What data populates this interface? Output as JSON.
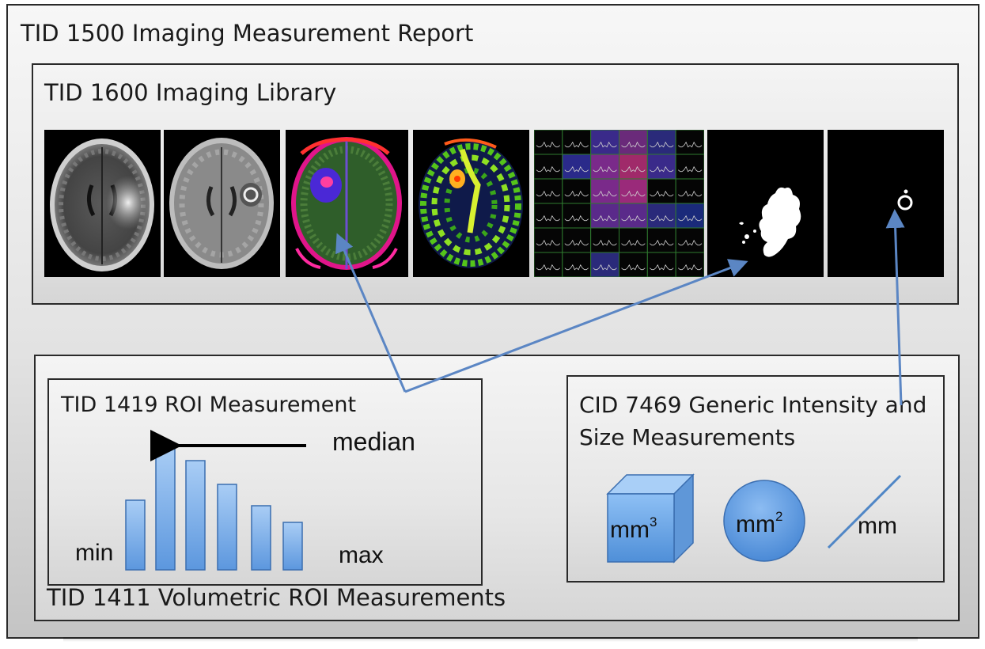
{
  "report": {
    "title": "TID 1500 Imaging Measurement Report"
  },
  "library": {
    "title": "TID 1600 Imaging Library",
    "images": [
      {
        "name": "flair-axial-brain-image"
      },
      {
        "name": "t1-contrast-axial-brain-image"
      },
      {
        "name": "perfusion-color-map-image"
      },
      {
        "name": "diffusion-color-map-image"
      },
      {
        "name": "spectroscopy-grid-image"
      },
      {
        "name": "tumor-segmentation-mask-image"
      },
      {
        "name": "enhancing-lesion-mask-image"
      }
    ]
  },
  "volumetric": {
    "title": "TID 1411 Volumetric ROI Measurements"
  },
  "roi": {
    "title": "TID 1419 ROI Measurement",
    "median_label": "median",
    "min_label": "min",
    "max_label": "max"
  },
  "cid": {
    "title": "CID 7469 Generic Intensity and Size Measurements",
    "volume_unit": "mm",
    "volume_exp": "3",
    "area_unit": "mm",
    "area_exp": "2",
    "length_unit": "mm"
  },
  "colors": {
    "arrow": "#5b86c4",
    "bar_fill": "#7fb2ec",
    "bar_stroke": "#3b6eb0"
  }
}
